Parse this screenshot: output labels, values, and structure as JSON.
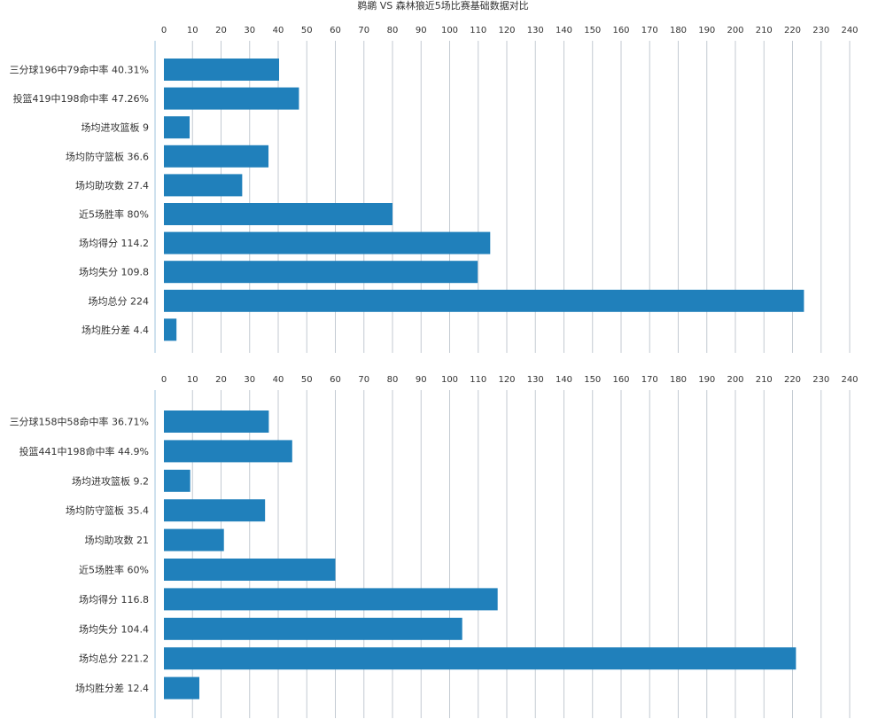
{
  "title": "鹈鹕 VS 森林狼近5场比赛基础数据对比",
  "colors": {
    "bar": "#2080bb",
    "grid": "#c3cad2",
    "axis": "#9fc3dc",
    "text": "#333333"
  },
  "chart_data": [
    {
      "type": "bar",
      "orientation": "horizontal",
      "x_ticks": [
        0,
        10,
        20,
        30,
        40,
        50,
        60,
        70,
        80,
        90,
        100,
        110,
        120,
        130,
        140,
        150,
        160,
        170,
        180,
        190,
        200,
        210,
        220,
        230,
        240
      ],
      "xlim": [
        0,
        240
      ],
      "grid": true,
      "categories": [
        "三分球196中79命中率 40.31%",
        "投篮419中198命中率 47.26%",
        "场均进攻篮板 9",
        "场均防守篮板 36.6",
        "场均助攻数 27.4",
        "近5场胜率 80%",
        "场均得分 114.2",
        "场均失分 109.8",
        "场均总分 224",
        "场均胜分差 4.4"
      ],
      "values": [
        40.31,
        47.26,
        9,
        36.6,
        27.4,
        80,
        114.2,
        109.8,
        224,
        4.4
      ]
    },
    {
      "type": "bar",
      "orientation": "horizontal",
      "x_ticks": [
        0,
        10,
        20,
        30,
        40,
        50,
        60,
        70,
        80,
        90,
        100,
        110,
        120,
        130,
        140,
        150,
        160,
        170,
        180,
        190,
        200,
        210,
        220,
        230,
        240
      ],
      "xlim": [
        0,
        240
      ],
      "grid": true,
      "categories": [
        "三分球158中58命中率 36.71%",
        "投篮441中198命中率 44.9%",
        "场均进攻篮板 9.2",
        "场均防守篮板 35.4",
        "场均助攻数 21",
        "近5场胜率 60%",
        "场均得分 116.8",
        "场均失分 104.4",
        "场均总分 221.2",
        "场均胜分差 12.4"
      ],
      "values": [
        36.71,
        44.9,
        9.2,
        35.4,
        21,
        60,
        116.8,
        104.4,
        221.2,
        12.4
      ]
    }
  ]
}
